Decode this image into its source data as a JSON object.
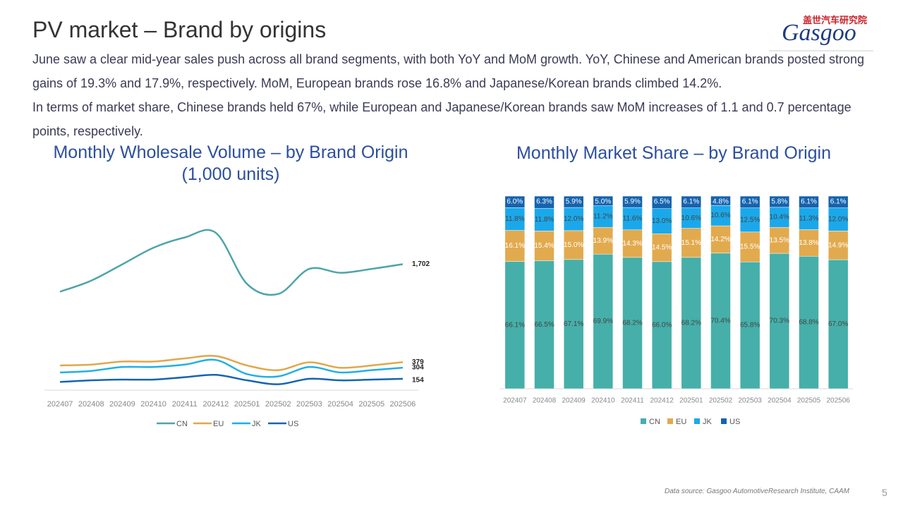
{
  "title": "PV market – Brand by origins",
  "paragraphs": [
    "June saw a clear mid-year sales push across all brand segments, with both YoY and MoM growth. YoY, Chinese and American brands posted strong gains of 19.3% and 17.9%, respectively. MoM, European brands rose 16.8% and Japanese/Korean brands climbed 14.2%.",
    "In terms of market share, Chinese brands held 67%, while European and Japanese/Korean brands saw MoM increases of 1.1 and 0.7 percentage points, respectively."
  ],
  "logo": {
    "cn": "盖世汽车研究院",
    "en": "Gasgoo"
  },
  "source": "Data source: Gasgoo AutomotiveResearch Institute, CAAM",
  "page_number": "5",
  "chart_data": [
    {
      "type": "line",
      "title": "Monthly Wholesale Volume – by Brand Origin (1,000 units)",
      "categories": [
        "202407",
        "202408",
        "202409",
        "202410",
        "202411",
        "202412",
        "202501",
        "202502",
        "202503",
        "202504",
        "202505",
        "202506"
      ],
      "series": [
        {
          "name": "CN",
          "color": "#4ea5a9",
          "values": [
            1330,
            1479,
            1700,
            1924,
            2062,
            2125,
            1436,
            1299,
            1638,
            1585,
            1638,
            1702
          ],
          "value_labels": [
            null,
            null,
            null,
            null,
            null,
            null,
            null,
            null,
            null,
            null,
            null,
            "1,702"
          ]
        },
        {
          "name": "EU",
          "color": "#e0a84a",
          "values": [
            334,
            345,
            387,
            387,
            429,
            461,
            334,
            270,
            376,
            302,
            334,
            379
          ]
        },
        {
          "name": "JK",
          "color": "#1fb0e6",
          "values": [
            239,
            260,
            313,
            313,
            345,
            408,
            217,
            186,
            313,
            239,
            270,
            304
          ]
        },
        {
          "name": "US",
          "color": "#1565b0",
          "values": [
            111,
            133,
            143,
            143,
            175,
            207,
            133,
            80,
            154,
            133,
            143,
            154
          ]
        }
      ]
    },
    {
      "type": "bar",
      "stacked": true,
      "title": "Monthly Market Share – by Brand Origin",
      "categories": [
        "202407",
        "202408",
        "202409",
        "202410",
        "202411",
        "202412",
        "202501",
        "202502",
        "202503",
        "202504",
        "202505",
        "202506"
      ],
      "series": [
        {
          "name": "CN",
          "color": "#46afa9",
          "values": [
            66.1,
            66.5,
            67.1,
            69.9,
            68.2,
            66.0,
            68.2,
            70.4,
            65.8,
            70.3,
            68.8,
            67.0
          ],
          "value_labels": [
            "66.1%",
            "66.5%",
            "67.1%",
            "69.9%",
            "68.2%",
            "66.0%",
            "68.2%",
            "70.4%",
            "65.8%",
            "70.3%",
            "68.8%",
            "67.0%"
          ]
        },
        {
          "name": "EU",
          "color": "#e2aa4e",
          "values": [
            16.1,
            15.4,
            15.0,
            13.9,
            14.3,
            14.5,
            15.1,
            14.2,
            15.5,
            13.5,
            13.8,
            14.9
          ],
          "value_labels": [
            "16.1%",
            "15.4%",
            "15.0%",
            "13.9%",
            "14.3%",
            "14.5%",
            "15.1%",
            "14.2%",
            "15.5%",
            "13.5%",
            "13.8%",
            "14.9%"
          ]
        },
        {
          "name": "JK",
          "color": "#1ba8ea",
          "values": [
            11.8,
            11.8,
            12.0,
            11.2,
            11.6,
            13.0,
            10.6,
            10.6,
            12.5,
            10.4,
            11.3,
            12.0
          ],
          "value_labels": [
            "11.8%",
            "11.8%",
            "12.0%",
            "11.2%",
            "11.6%",
            "13.0%",
            "10.6%",
            "10.6%",
            "12.5%",
            "10.4%",
            "11.3%",
            "12.0%"
          ]
        },
        {
          "name": "US",
          "color": "#1463ae",
          "values": [
            6.0,
            6.3,
            5.9,
            5.0,
            5.9,
            6.5,
            6.1,
            4.8,
            6.1,
            5.8,
            6.1,
            6.1
          ],
          "value_labels": [
            "6.0%",
            "6.3%",
            "5.9%",
            "5.0%",
            "5.9%",
            "6.5%",
            "6.1%",
            "4.8%",
            "6.1%",
            "5.8%",
            "6.1%",
            "6.1%"
          ]
        }
      ]
    }
  ]
}
